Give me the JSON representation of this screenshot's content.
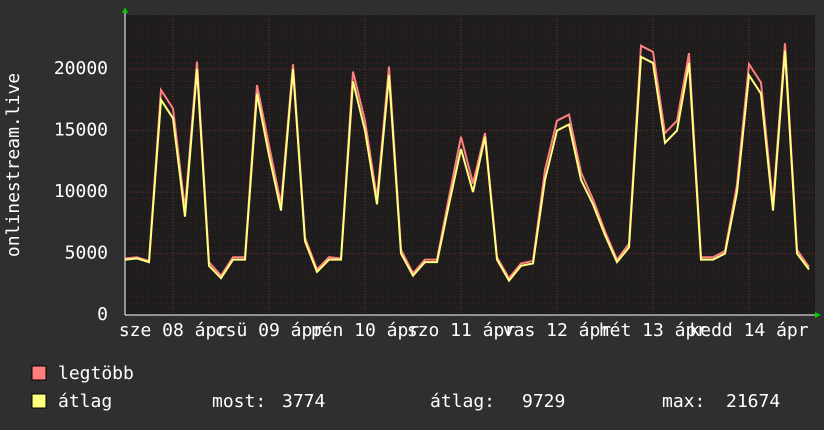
{
  "chart_data": {
    "type": "line",
    "ylabel": "onlinestream.live",
    "x": [
      0,
      3,
      6,
      9,
      12,
      15,
      18,
      21,
      24,
      27,
      30,
      33,
      36,
      39,
      42,
      45,
      48,
      51,
      54,
      57,
      60,
      63,
      66,
      69,
      72,
      75,
      78,
      81,
      84,
      87,
      90,
      93,
      96,
      99,
      102,
      105,
      108,
      111,
      114,
      117,
      120,
      123,
      126,
      129,
      132,
      135,
      138,
      141,
      144,
      147,
      150,
      153,
      156,
      159,
      162,
      165,
      168,
      171
    ],
    "series": [
      {
        "name": "legtöbb",
        "color": "#ff7f7f",
        "values": [
          4600,
          4700,
          4400,
          18300,
          16800,
          8600,
          20600,
          4300,
          3200,
          4700,
          4700,
          18700,
          13800,
          9000,
          20400,
          6300,
          3700,
          4700,
          4600,
          19800,
          15800,
          9500,
          20200,
          5300,
          3400,
          4500,
          4500,
          9600,
          14500,
          10700,
          14800,
          4700,
          3000,
          4200,
          4400,
          11800,
          15800,
          16300,
          11600,
          9400,
          6800,
          4500,
          5800,
          21900,
          21400,
          14800,
          15800,
          21300,
          4700,
          4700,
          5200,
          10600,
          20400,
          18900,
          9000,
          22100,
          5300,
          3900
        ]
      },
      {
        "name": "átlag",
        "color": "#ffff80",
        "values": [
          4500,
          4600,
          4300,
          17500,
          16000,
          8000,
          20000,
          4000,
          3000,
          4500,
          4500,
          18000,
          13000,
          8500,
          20000,
          6000,
          3500,
          4500,
          4500,
          19000,
          15000,
          9000,
          19500,
          5000,
          3200,
          4300,
          4300,
          9000,
          13500,
          10000,
          14500,
          4500,
          2800,
          4000,
          4200,
          11000,
          15000,
          15500,
          11000,
          9000,
          6500,
          4300,
          5500,
          21000,
          20500,
          14000,
          15000,
          20500,
          4500,
          4500,
          5000,
          10000,
          19500,
          18000,
          8500,
          21500,
          5000,
          3700
        ]
      }
    ],
    "xlim": [
      0,
      172.5
    ],
    "xticks": [
      {
        "value": 12,
        "label": "sze 08 ápr"
      },
      {
        "value": 36,
        "label": "csü 09 ápr"
      },
      {
        "value": 60,
        "label": "pén 10 ápr"
      },
      {
        "value": 84,
        "label": "szo 11 ápr"
      },
      {
        "value": 108,
        "label": "vas 12 ápr"
      },
      {
        "value": 132,
        "label": "hét 13 ápr"
      },
      {
        "value": 156,
        "label": "kedd 14 ápr"
      }
    ],
    "ylim": [
      0,
      24400
    ],
    "yticks": [
      0,
      5000,
      10000,
      15000,
      20000
    ],
    "grid": true,
    "stats": [
      {
        "label": "most:",
        "value": 3774
      },
      {
        "label": "átlag:",
        "value": 9729
      },
      {
        "label": "max:",
        "value": 21674
      }
    ]
  }
}
